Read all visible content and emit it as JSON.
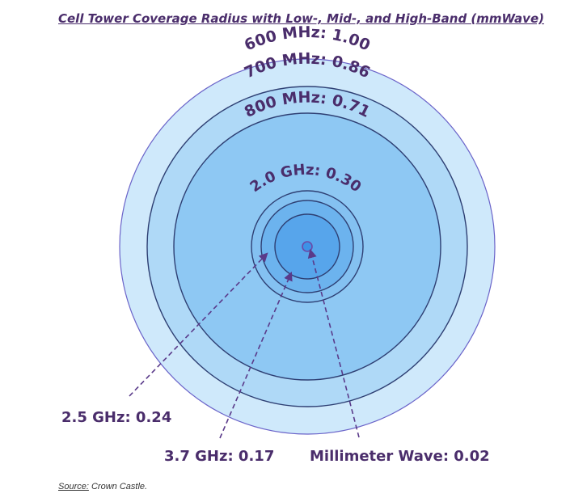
{
  "title": "Cell Tower Coverage Radius with Low-, Mid-, and High-Band (mmWave)",
  "source": {
    "label": "Source:",
    "value": "Crown Castle."
  },
  "colors": {
    "ring_600": "#cfe9fb",
    "ring_700": "#afd9f7",
    "ring_800": "#8ec8f3",
    "core_25": "#84c1f1",
    "core_20": "#6cb3ee",
    "core_17": "#57a5eb",
    "core_mm": "#3d92e6",
    "stroke": "#2e3f73",
    "outer_stroke": "#6b64c9",
    "text": "#4a2d6b",
    "arrow": "#5a3a8a"
  },
  "bands": [
    {
      "id": "600mhz",
      "label": "600 MHz: 1.00",
      "radius": 1.0
    },
    {
      "id": "700mhz",
      "label": "700 MHz: 0.86",
      "radius": 0.86
    },
    {
      "id": "800mhz",
      "label": "800 MHz: 0.71",
      "radius": 0.71
    },
    {
      "id": "2-0ghz",
      "label": "2.0 GHz: 0.30",
      "radius": 0.3
    },
    {
      "id": "2-5ghz",
      "label": "2.5 GHz: 0.24",
      "radius": 0.24
    },
    {
      "id": "3-7ghz",
      "label": "3.7 GHz: 0.17",
      "radius": 0.17
    },
    {
      "id": "mmwave",
      "label": "Millimeter Wave: 0.02",
      "radius": 0.02
    }
  ]
}
